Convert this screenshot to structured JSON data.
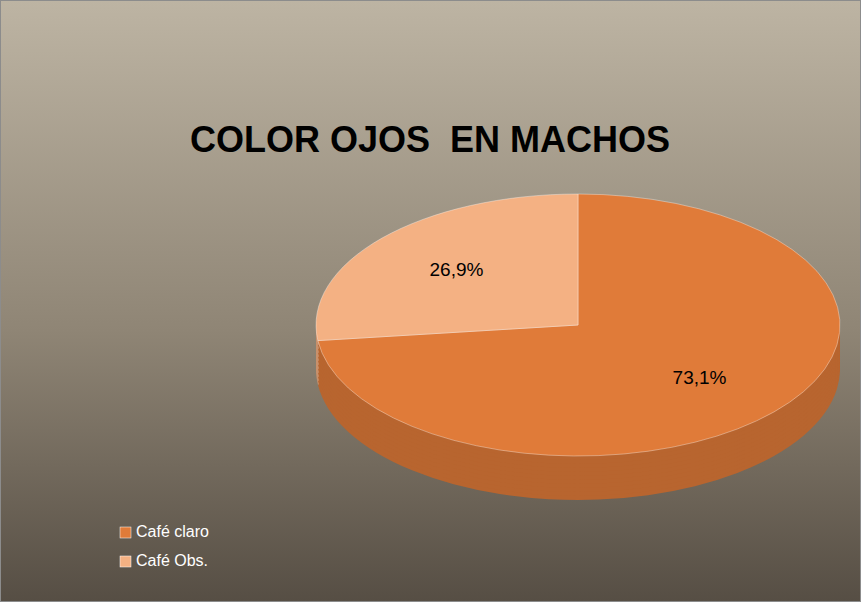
{
  "chart_data": {
    "type": "pie",
    "title": "COLOR OJOS  EN MACHOS",
    "categories": [
      "Café claro",
      "Café Obs."
    ],
    "values": [
      73.1,
      26.9
    ],
    "value_labels": [
      "73,1%",
      "26,9%"
    ],
    "colors": [
      "#e07b39",
      "#f4b183"
    ],
    "data_labels": true,
    "legend": "bottom-left"
  }
}
